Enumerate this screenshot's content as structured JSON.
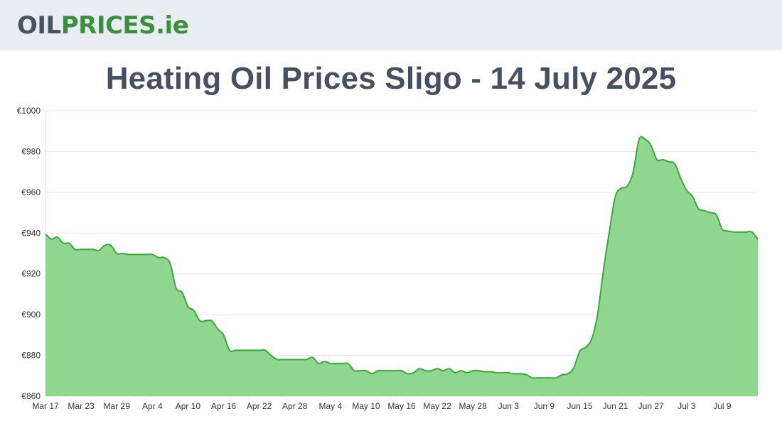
{
  "header": {
    "logo_part1": "OIL",
    "logo_part2": "PRICES",
    "logo_part3": ".ie"
  },
  "page_title": "Heating Oil Prices Sligo - 14 July 2025",
  "colors": {
    "header_bg": "#e9ecf3",
    "logo_dark": "#4a5260",
    "logo_green": "#3c8f3c",
    "line": "#3aa83a",
    "fill": "#8fd68f",
    "grid": "#e6e6e6"
  },
  "chart_data": {
    "type": "area",
    "title": "",
    "xlabel": "",
    "ylabel": "",
    "ylim": [
      860,
      1000
    ],
    "y_ticks": [
      860,
      880,
      900,
      920,
      940,
      960,
      980,
      1000
    ],
    "y_tick_labels": [
      "€860",
      "€880",
      "€900",
      "€920",
      "€940",
      "€960",
      "€980",
      "€1000"
    ],
    "x_tick_labels": [
      "Mar 17",
      "Mar 23",
      "Mar 29",
      "Apr 4",
      "Apr 10",
      "Apr 16",
      "Apr 22",
      "Apr 28",
      "May 4",
      "May 10",
      "May 16",
      "May 22",
      "May 28",
      "Jun 3",
      "Jun 9",
      "Jun 15",
      "Jun 21",
      "Jun 27",
      "Jul 3",
      "Jul 9"
    ],
    "grid": true,
    "legend": "none",
    "series": [
      {
        "values": [
          939.5,
          937,
          938,
          935,
          935,
          932,
          932,
          932,
          932,
          931.5,
          934,
          934,
          930,
          930,
          929.5,
          929.5,
          929.5,
          929.5,
          929.5,
          928,
          928,
          925,
          913,
          911,
          904,
          902,
          897,
          897,
          897,
          893,
          890,
          882.5,
          882.5,
          882.5,
          882.5,
          882.5,
          882.5,
          882.5,
          880,
          878,
          878,
          878,
          878,
          878,
          878,
          879,
          876,
          877,
          876,
          876,
          876,
          876,
          872.5,
          872.5,
          872.5,
          871,
          872.5,
          872.5,
          872.5,
          872.5,
          872.5,
          871,
          871.5,
          873.5,
          872.5,
          872.5,
          873.5,
          872.5,
          873.5,
          871.5,
          872.5,
          871.5,
          872.5,
          872.5,
          872,
          872,
          871.5,
          871.5,
          871.5,
          871,
          871,
          870.5,
          869,
          869,
          869,
          869,
          869,
          870.5,
          871,
          874,
          882,
          884,
          888,
          900,
          922,
          941,
          958,
          962,
          963,
          970,
          986,
          986,
          983,
          976,
          976,
          975,
          974,
          967,
          961,
          958,
          952,
          951,
          950,
          949,
          942,
          941,
          940.5,
          940.5,
          940.5,
          940.5,
          937
        ]
      }
    ]
  }
}
